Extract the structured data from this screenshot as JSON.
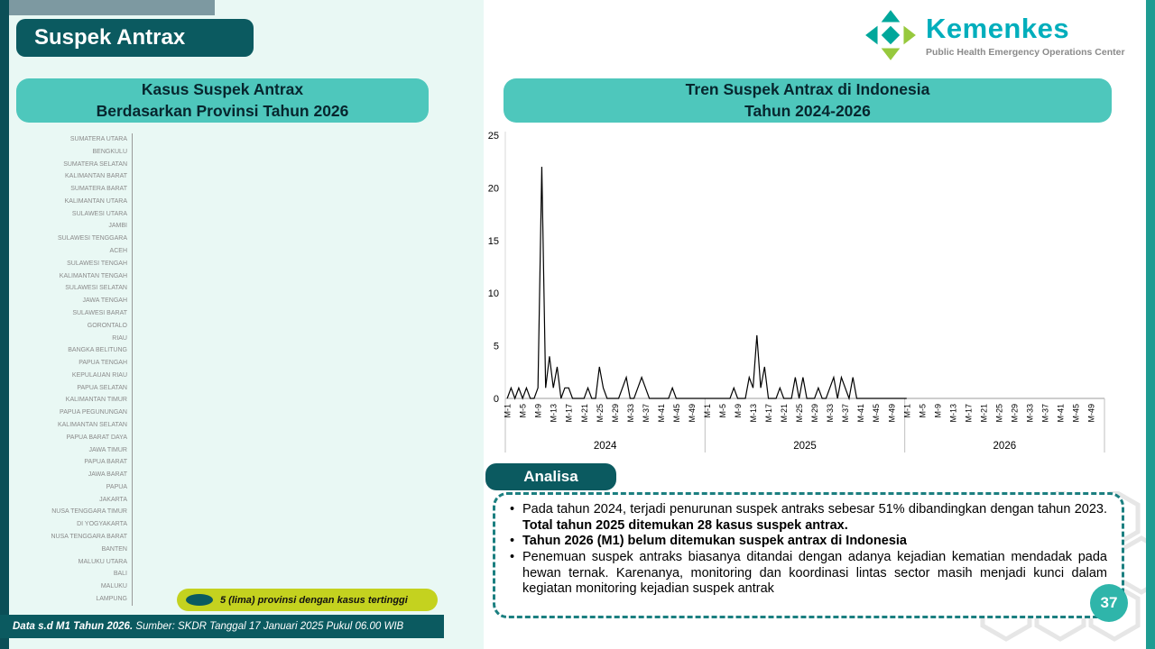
{
  "page": {
    "title_badge": "Suspek Antrax",
    "page_number": "37"
  },
  "logo": {
    "name": "Kemenkes",
    "subtitle": "Public Health Emergency Operations Center"
  },
  "left_panel": {
    "header_line1": "Kasus Suspek Antrax",
    "header_line2": "Berdasarkan Provinsi Tahun 2026",
    "legend": "5 (lima) provinsi dengan kasus tertinggi"
  },
  "right_panel": {
    "header_line1": "Tren Suspek Antrax di Indonesia",
    "header_line2": "Tahun 2024-2026"
  },
  "analisa": {
    "badge": "Analisa",
    "bullets": [
      [
        {
          "t": "Pada tahun 2024, terjadi penurunan suspek antraks sebesar 51% dibandingkan dengan tahun 2023. ",
          "b": false
        },
        {
          "t": "Total tahun 2025 ditemukan 28 kasus suspek antrax.",
          "b": true
        }
      ],
      [
        {
          "t": "Tahun 2026 (M1) belum ditemukan suspek antrax di Indonesia",
          "b": true
        }
      ],
      [
        {
          "t": "Penemuan suspek antraks biasanya ditandai dengan adanya kejadian kematian mendadak pada hewan ternak. Karenanya, monitoring dan koordinasi lintas sector masih menjadi kunci dalam kegiatan monitoring kejadian suspek antrak",
          "b": false
        }
      ]
    ]
  },
  "footer": {
    "bold": "Data s.d M1 Tahun 2026.",
    "rest": " Sumber: SKDR Tanggal 17 Januari 2025 Pukul 06.00 WIB"
  },
  "colors": {
    "dark_teal": "#0b5a60",
    "turquoise": "#4ec7bc",
    "lime": "#c4d21f",
    "mint": "#e9f8f4",
    "page_circle_teal": "#2fb5aa",
    "logo_teal": "#00aebc",
    "logo_green": "#97c93d"
  },
  "chart_data": [
    {
      "type": "bar",
      "orientation": "horizontal",
      "title": "Kasus Suspek Antrax Berdasarkan Provinsi Tahun 2026",
      "categories": [
        "SUMATERA UTARA",
        "BENGKULU",
        "SUMATERA SELATAN",
        "KALIMANTAN BARAT",
        "SUMATERA BARAT",
        "KALIMANTAN UTARA",
        "SULAWESI UTARA",
        "JAMBI",
        "SULAWESI TENGGARA",
        "ACEH",
        "SULAWESI TENGAH",
        "KALIMANTAN TENGAH",
        "SULAWESI SELATAN",
        "JAWA TENGAH",
        "SULAWESI BARAT",
        "GORONTALO",
        "RIAU",
        "BANGKA BELITUNG",
        "PAPUA TENGAH",
        "KEPULAUAN RIAU",
        "PAPUA SELATAN",
        "KALIMANTAN TIMUR",
        "PAPUA PEGUNUNGAN",
        "KALIMANTAN SELATAN",
        "PAPUA BARAT DAYA",
        "JAWA TIMUR",
        "PAPUA BARAT",
        "JAWA BARAT",
        "PAPUA",
        "JAKARTA",
        "NUSA TENGGARA TIMUR",
        "DI YOGYAKARTA",
        "NUSA TENGGARA BARAT",
        "BANTEN",
        "MALUKU UTARA",
        "BALI",
        "MALUKU",
        "LAMPUNG"
      ],
      "values": [
        0,
        0,
        0,
        0,
        0,
        0,
        0,
        0,
        0,
        0,
        0,
        0,
        0,
        0,
        0,
        0,
        0,
        0,
        0,
        0,
        0,
        0,
        0,
        0,
        0,
        0,
        0,
        0,
        0,
        0,
        0,
        0,
        0,
        0,
        0,
        0,
        0,
        0
      ]
    },
    {
      "type": "line",
      "title": "Tren Suspek Antrax di Indonesia Tahun 2024-2026",
      "ylim": [
        0,
        25
      ],
      "yticks": [
        0,
        5,
        10,
        15,
        20,
        25
      ],
      "years": [
        "2024",
        "2025",
        "2026"
      ],
      "weeks_per_year": 52,
      "x_tick_weeks": [
        1,
        5,
        9,
        13,
        17,
        21,
        25,
        29,
        33,
        37,
        41,
        45,
        49
      ],
      "x_tick_prefix": "M-",
      "series": [
        {
          "name": "2024",
          "values": [
            0,
            1,
            0,
            1,
            0,
            1,
            0,
            0,
            1,
            22,
            1,
            4,
            1,
            3,
            0,
            1,
            1,
            0,
            0,
            0,
            0,
            1,
            0,
            0,
            3,
            1,
            0,
            0,
            0,
            0,
            1,
            2,
            0,
            0,
            1,
            2,
            1,
            0,
            0,
            0,
            0,
            0,
            0,
            1,
            0,
            0,
            0,
            0,
            0,
            0,
            0,
            0
          ]
        },
        {
          "name": "2025",
          "values": [
            0,
            0,
            0,
            0,
            0,
            0,
            0,
            1,
            0,
            0,
            0,
            2,
            1,
            6,
            1,
            3,
            0,
            0,
            0,
            1,
            0,
            0,
            0,
            2,
            0,
            2,
            0,
            0,
            0,
            1,
            0,
            0,
            1,
            2,
            0,
            2,
            1,
            0,
            2,
            0,
            0,
            0,
            0,
            0,
            0,
            0,
            0,
            0,
            0,
            0,
            0,
            0
          ]
        },
        {
          "name": "2026",
          "values": [
            0
          ]
        }
      ]
    }
  ]
}
